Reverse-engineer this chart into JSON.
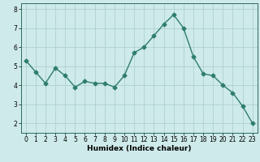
{
  "x": [
    0,
    1,
    2,
    3,
    4,
    5,
    6,
    7,
    8,
    9,
    10,
    11,
    12,
    13,
    14,
    15,
    16,
    17,
    18,
    19,
    20,
    21,
    22,
    23
  ],
  "y": [
    5.3,
    4.7,
    4.1,
    4.9,
    4.5,
    3.9,
    4.2,
    4.1,
    4.1,
    3.9,
    4.5,
    5.7,
    6.0,
    6.6,
    7.2,
    7.7,
    7.0,
    5.5,
    4.6,
    4.5,
    4.0,
    3.6,
    2.9,
    2.0
  ],
  "line_color": "#2e7d6e",
  "marker": "D",
  "markersize": 2.5,
  "linewidth": 1.0,
  "bg_color": "#ceeaea",
  "grid_color": "#b0d0d0",
  "xlabel": "Humidex (Indice chaleur)",
  "ylim": [
    1.5,
    8.3
  ],
  "xlim": [
    -0.5,
    23.5
  ],
  "yticks": [
    2,
    3,
    4,
    5,
    6,
    7,
    8
  ],
  "xticks": [
    0,
    1,
    2,
    3,
    4,
    5,
    6,
    7,
    8,
    9,
    10,
    11,
    12,
    13,
    14,
    15,
    16,
    17,
    18,
    19,
    20,
    21,
    22,
    23
  ],
  "xlabel_fontsize": 6.5,
  "tick_fontsize": 5.5,
  "spine_color": "#2e6b5e"
}
